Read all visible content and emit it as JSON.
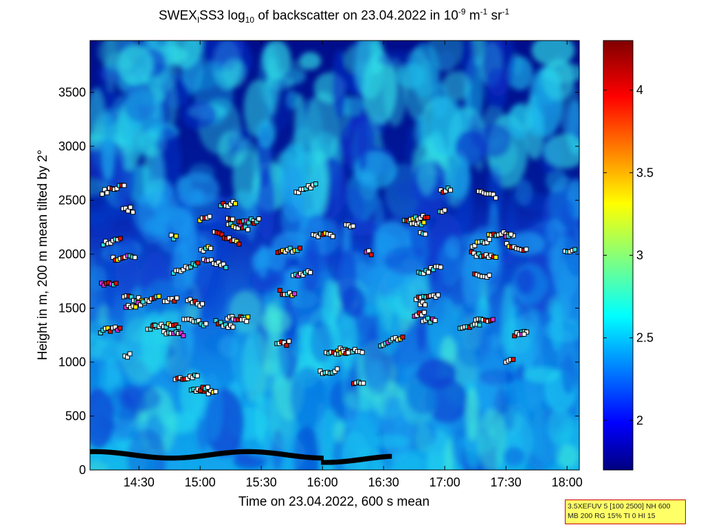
{
  "chart_data": {
    "type": "heatmap",
    "title": {
      "prefix": "SWEX",
      "sub1": "I",
      "mid": "SS3 log",
      "sub2": "10",
      "mid2": " of backscatter on 23.04.2022 in 10",
      "sup1": "-9",
      "mid3": " m",
      "sup2": "-1",
      "mid4": " sr",
      "sup3": "-1"
    },
    "xlabel": "Time on 23.04.2022, 600 s mean",
    "ylabel": "Height in m, 200 m mean tilted by 2°",
    "x_ticks": [
      "14:30",
      "15:00",
      "15:30",
      "16:00",
      "16:30",
      "17:00",
      "17:30",
      "18:00"
    ],
    "x_tick_hours": [
      14.5,
      15.0,
      15.5,
      16.0,
      16.5,
      17.0,
      17.5,
      18.0
    ],
    "xlim_hours": [
      14.1,
      18.1
    ],
    "y_ticks": [
      "0",
      "500",
      "1000",
      "1500",
      "2000",
      "2500",
      "3000",
      "3500"
    ],
    "y_tick_values": [
      0,
      500,
      1000,
      1500,
      2000,
      2500,
      3000,
      3500
    ],
    "ylim": [
      0,
      3980
    ],
    "colorbar": {
      "ticks": [
        "2",
        "2.5",
        "3",
        "3.5",
        "4"
      ],
      "tick_values": [
        2,
        2.5,
        3,
        3.5,
        4
      ],
      "range": [
        1.7,
        4.3
      ],
      "colormap": "jet"
    },
    "markers": {
      "layer_heights_m": [
        150,
        1350,
        1550,
        2000,
        2350,
        950
      ],
      "colors": {
        "white": "#ffffff",
        "cyan": "#33dddd",
        "red": "#dd1100",
        "yellow": "#ffee00",
        "magenta": "#dd33dd",
        "black": "#000000"
      }
    }
  },
  "info_box": {
    "line1": "3.5XEFUV 5 [100 2500] NH 600",
    "line2": "MB 200 RG 15% TI 0 HI 15"
  }
}
